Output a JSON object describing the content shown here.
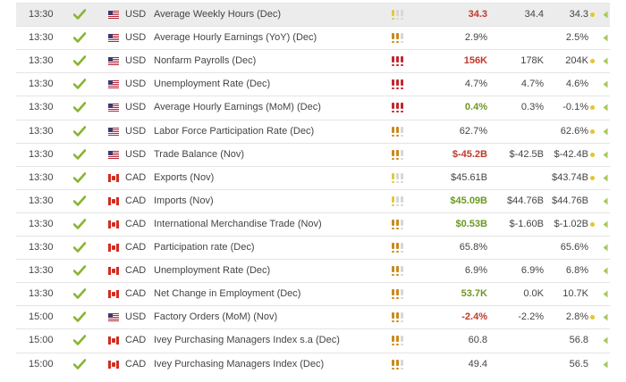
{
  "colors": {
    "check": "#8ab332",
    "importance_high": "#c1272d",
    "importance_medium": "#c98a1f",
    "importance_low": "#e0c93a",
    "importance_empty": "#d6d6d6",
    "actual_worse": "#c0392b",
    "actual_better": "#6d9822",
    "revision_dot": "#e4c62b",
    "expand_arrow": "#a7c85e"
  },
  "icons": {
    "released": "check-icon",
    "usd_flag": "us-flag-icon",
    "cad_flag": "canada-flag-icon",
    "importance": "exclamation-importance-icon",
    "revision": "revision-dot-icon",
    "expand": "expand-arrow-icon"
  },
  "events": [
    {
      "time": "13:30",
      "country": "us",
      "currency": "USD",
      "event": "Average Weekly Hours (Dec)",
      "importance": 1,
      "actual": "34.3",
      "actual_style": "red",
      "forecast": "34.4",
      "previous": "34.3",
      "revised": true
    },
    {
      "time": "13:30",
      "country": "us",
      "currency": "USD",
      "event": "Average Hourly Earnings (YoY) (Dec)",
      "importance": 2,
      "actual": "2.9%",
      "actual_style": "neutral",
      "forecast": "",
      "previous": "2.5%",
      "revised": false
    },
    {
      "time": "13:30",
      "country": "us",
      "currency": "USD",
      "event": "Nonfarm Payrolls (Dec)",
      "importance": 3,
      "actual": "156K",
      "actual_style": "red",
      "forecast": "178K",
      "previous": "204K",
      "revised": true
    },
    {
      "time": "13:30",
      "country": "us",
      "currency": "USD",
      "event": "Unemployment Rate (Dec)",
      "importance": 3,
      "actual": "4.7%",
      "actual_style": "neutral",
      "forecast": "4.7%",
      "previous": "4.6%",
      "revised": false
    },
    {
      "time": "13:30",
      "country": "us",
      "currency": "USD",
      "event": "Average Hourly Earnings (MoM) (Dec)",
      "importance": 3,
      "actual": "0.4%",
      "actual_style": "green",
      "forecast": "0.3%",
      "previous": "-0.1%",
      "revised": true
    },
    {
      "time": "13:30",
      "country": "us",
      "currency": "USD",
      "event": "Labor Force Participation Rate (Dec)",
      "importance": 2,
      "actual": "62.7%",
      "actual_style": "neutral",
      "forecast": "",
      "previous": "62.6%",
      "revised": true
    },
    {
      "time": "13:30",
      "country": "us",
      "currency": "USD",
      "event": "Trade Balance (Nov)",
      "importance": 2,
      "actual": "$-45.2B",
      "actual_style": "red",
      "forecast": "$-42.5B",
      "previous": "$-42.4B",
      "revised": true
    },
    {
      "time": "13:30",
      "country": "ca",
      "currency": "CAD",
      "event": "Exports (Nov)",
      "importance": 1,
      "actual": "$45.61B",
      "actual_style": "neutral",
      "forecast": "",
      "previous": "$43.74B",
      "revised": true
    },
    {
      "time": "13:30",
      "country": "ca",
      "currency": "CAD",
      "event": "Imports (Nov)",
      "importance": 1,
      "actual": "$45.09B",
      "actual_style": "green",
      "forecast": "$44.76B",
      "previous": "$44.76B",
      "revised": false
    },
    {
      "time": "13:30",
      "country": "ca",
      "currency": "CAD",
      "event": "International Merchandise Trade (Nov)",
      "importance": 2,
      "actual": "$0.53B",
      "actual_style": "green",
      "forecast": "$-1.60B",
      "previous": "$-1.02B",
      "revised": true
    },
    {
      "time": "13:30",
      "country": "ca",
      "currency": "CAD",
      "event": "Participation rate (Dec)",
      "importance": 2,
      "actual": "65.8%",
      "actual_style": "neutral",
      "forecast": "",
      "previous": "65.6%",
      "revised": false
    },
    {
      "time": "13:30",
      "country": "ca",
      "currency": "CAD",
      "event": "Unemployment Rate (Dec)",
      "importance": 2,
      "actual": "6.9%",
      "actual_style": "neutral",
      "forecast": "6.9%",
      "previous": "6.8%",
      "revised": false
    },
    {
      "time": "13:30",
      "country": "ca",
      "currency": "CAD",
      "event": "Net Change in Employment (Dec)",
      "importance": 2,
      "actual": "53.7K",
      "actual_style": "green",
      "forecast": "0.0K",
      "previous": "10.7K",
      "revised": false
    },
    {
      "time": "15:00",
      "country": "us",
      "currency": "USD",
      "event": "Factory Orders (MoM) (Nov)",
      "importance": 2,
      "actual": "-2.4%",
      "actual_style": "red",
      "forecast": "-2.2%",
      "previous": "2.8%",
      "revised": true
    },
    {
      "time": "15:00",
      "country": "ca",
      "currency": "CAD",
      "event": "Ivey Purchasing Managers Index s.a (Dec)",
      "importance": 2,
      "actual": "60.8",
      "actual_style": "neutral",
      "forecast": "",
      "previous": "56.8",
      "revised": false
    },
    {
      "time": "15:00",
      "country": "ca",
      "currency": "CAD",
      "event": "Ivey Purchasing Managers Index (Dec)",
      "importance": 2,
      "actual": "49.4",
      "actual_style": "neutral",
      "forecast": "",
      "previous": "56.5",
      "revised": false
    }
  ]
}
